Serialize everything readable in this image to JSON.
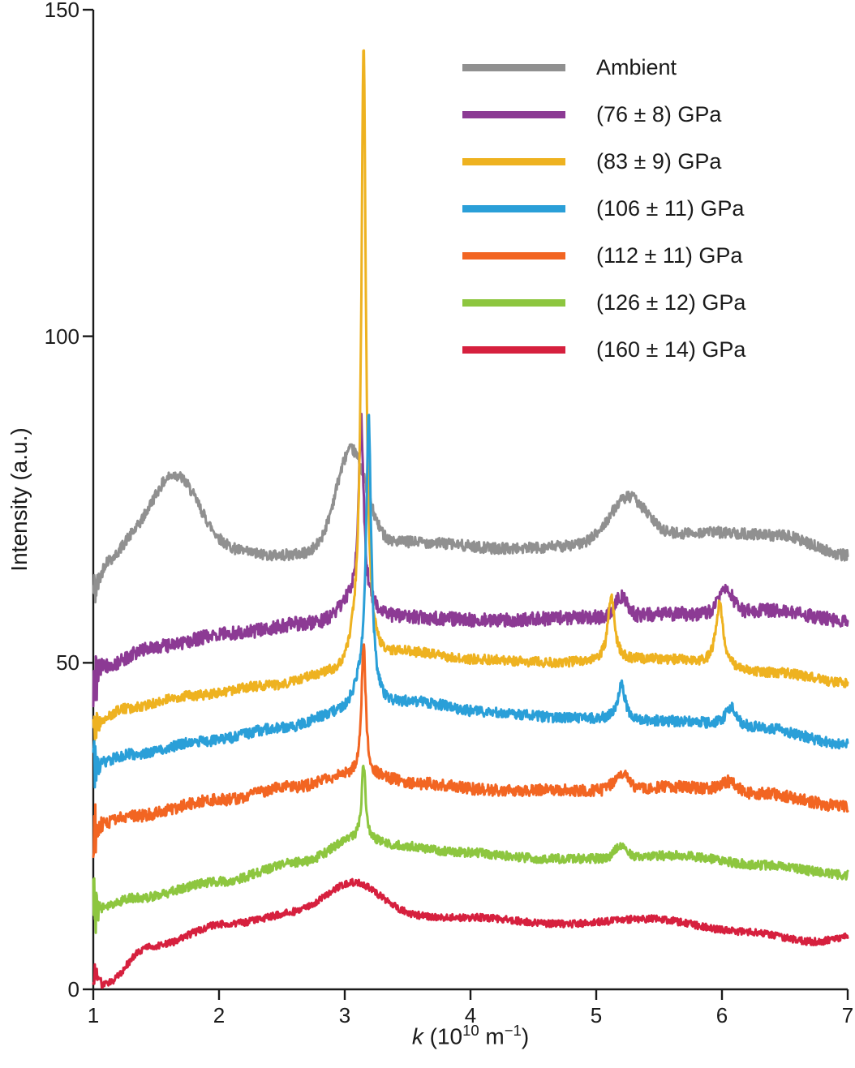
{
  "chart_data": {
    "type": "line",
    "title": "",
    "ylabel": "Intensity (a.u.)",
    "xlabel_parts": {
      "variable": "k",
      "open": " (10",
      "exponent1": "10",
      "mid": " m",
      "exponent2": "−1",
      "close": ")"
    },
    "xlim": [
      1,
      7
    ],
    "ylim": [
      0,
      150
    ],
    "x_ticks": [
      1,
      2,
      3,
      4,
      5,
      6,
      7
    ],
    "y_ticks": [
      0,
      50,
      100,
      150
    ],
    "grid": false,
    "legend_position": "upper right inside",
    "axis_color": "#1a1a1a",
    "series": [
      {
        "name": "Ambient",
        "color": "#909090",
        "noise": 0.85,
        "edge_noise": 3,
        "anchors": [
          [
            1.0,
            61
          ],
          [
            1.12,
            65.5
          ],
          [
            1.3,
            67.5
          ],
          [
            2.05,
            67
          ],
          [
            2.45,
            66.5
          ],
          [
            3.55,
            68.5
          ],
          [
            4.3,
            67.5
          ],
          [
            5.0,
            68
          ],
          [
            5.9,
            70
          ],
          [
            6.45,
            69.5
          ],
          [
            7.0,
            66.5
          ]
        ],
        "peaks": [
          [
            1.65,
            11.5,
            0.27,
            "g"
          ],
          [
            3.05,
            15,
            0.17,
            "g"
          ],
          [
            5.25,
            7,
            0.21,
            "g"
          ]
        ]
      },
      {
        "name": "(76 ± 8) GPa",
        "color": "#8c3a94",
        "noise": 1.05,
        "edge_noise": 4,
        "anchors": [
          [
            1.0,
            47
          ],
          [
            1.08,
            49.5
          ],
          [
            1.5,
            52.5
          ],
          [
            2.1,
            54.5
          ],
          [
            2.7,
            56
          ],
          [
            3.3,
            57
          ],
          [
            4.2,
            56.5
          ],
          [
            5.0,
            57
          ],
          [
            5.7,
            57.5
          ],
          [
            6.35,
            58
          ],
          [
            7.0,
            56.5
          ]
        ],
        "peaks": [
          [
            3.13,
            28,
            0.024,
            "l"
          ],
          [
            3.08,
            3,
            0.16,
            "g"
          ],
          [
            5.2,
            3,
            0.07,
            "g"
          ],
          [
            6.03,
            3.5,
            0.08,
            "g"
          ]
        ]
      },
      {
        "name": "(83 ± 9) GPa",
        "color": "#eeb220",
        "noise": 0.75,
        "edge_noise": 3,
        "anchors": [
          [
            1.0,
            40.5
          ],
          [
            1.25,
            43
          ],
          [
            1.8,
            45
          ],
          [
            2.4,
            46.5
          ],
          [
            2.95,
            48.5
          ],
          [
            3.5,
            51.5
          ],
          [
            4.0,
            50.5
          ],
          [
            4.7,
            50
          ],
          [
            5.5,
            50.5
          ],
          [
            6.4,
            48.5
          ],
          [
            7.0,
            47
          ]
        ],
        "peaks": [
          [
            3.15,
            90,
            0.021,
            "l"
          ],
          [
            3.13,
            6,
            0.1,
            "g"
          ],
          [
            5.12,
            10,
            0.032,
            "l"
          ],
          [
            5.98,
            9.5,
            0.036,
            "l"
          ]
        ]
      },
      {
        "name": "(106 ± 11) GPa",
        "color": "#2a9fd8",
        "noise": 0.8,
        "edge_noise": 4,
        "anchors": [
          [
            1.0,
            34.5
          ],
          [
            1.3,
            36
          ],
          [
            1.9,
            38
          ],
          [
            2.5,
            40
          ],
          [
            3.0,
            42.5
          ],
          [
            3.55,
            44
          ],
          [
            4.1,
            42.5
          ],
          [
            4.8,
            41.5
          ],
          [
            5.6,
            41
          ],
          [
            6.3,
            40
          ],
          [
            7.0,
            37.5
          ]
        ],
        "peaks": [
          [
            3.19,
            41,
            0.023,
            "l"
          ],
          [
            3.16,
            4.5,
            0.11,
            "g"
          ],
          [
            5.2,
            5.5,
            0.035,
            "l"
          ],
          [
            6.07,
            3,
            0.05,
            "l"
          ]
        ]
      },
      {
        "name": "(112 ± 11) GPa",
        "color": "#f26522",
        "noise": 0.9,
        "edge_noise": 5,
        "anchors": [
          [
            1.0,
            25
          ],
          [
            1.3,
            26.5
          ],
          [
            2.0,
            29
          ],
          [
            2.6,
            31
          ],
          [
            3.1,
            33
          ],
          [
            3.6,
            31.5
          ],
          [
            4.2,
            30.5
          ],
          [
            5.0,
            30.5
          ],
          [
            5.65,
            31
          ],
          [
            6.3,
            30
          ],
          [
            7.0,
            28
          ]
        ],
        "peaks": [
          [
            3.15,
            20,
            0.02,
            "l"
          ],
          [
            5.2,
            2.5,
            0.08,
            "g"
          ],
          [
            6.05,
            1.5,
            0.09,
            "g"
          ]
        ]
      },
      {
        "name": "(126 ± 12) GPa",
        "color": "#8dc63f",
        "noise": 0.7,
        "edge_noise": 6,
        "anchors": [
          [
            1.0,
            12.5
          ],
          [
            1.35,
            14
          ],
          [
            2.0,
            16.5
          ],
          [
            2.65,
            19.5
          ],
          [
            3.1,
            23
          ],
          [
            3.45,
            22
          ],
          [
            3.9,
            21
          ],
          [
            4.6,
            20
          ],
          [
            5.05,
            20
          ],
          [
            5.6,
            20.5
          ],
          [
            6.35,
            19
          ],
          [
            7.0,
            17.5
          ]
        ],
        "peaks": [
          [
            3.15,
            11.5,
            0.019,
            "l"
          ],
          [
            5.2,
            2,
            0.07,
            "g"
          ]
        ]
      },
      {
        "name": "(160 ± 14) GPa",
        "color": "#d6203e",
        "noise": 0.55,
        "edge_noise": 2,
        "anchors": [
          [
            1.0,
            2.5
          ],
          [
            1.08,
            0.8
          ],
          [
            1.45,
            6.5
          ],
          [
            2.05,
            10
          ],
          [
            2.6,
            11.5
          ],
          [
            4.0,
            11
          ],
          [
            4.75,
            10
          ],
          [
            5.4,
            10.8
          ],
          [
            6.2,
            8.8
          ],
          [
            6.75,
            7.3
          ],
          [
            7.0,
            8
          ]
        ],
        "peaks": [
          [
            3.07,
            5,
            0.3,
            "g"
          ]
        ]
      }
    ]
  }
}
